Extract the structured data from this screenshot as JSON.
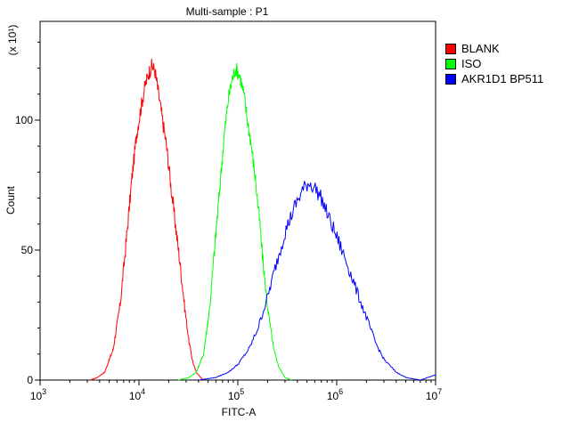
{
  "chart_data": {
    "type": "line",
    "title": "Multi-sample : P1",
    "xlabel": "FITC-A",
    "ylabel": "Count",
    "y_multiplier_label": "(x 10¹)",
    "x_scale": "log",
    "xlim": [
      1000,
      10000000
    ],
    "ylim": [
      0,
      138
    ],
    "x_ticks": [
      {
        "value": 1000,
        "base": "10",
        "exp": "3"
      },
      {
        "value": 10000,
        "base": "10",
        "exp": "4"
      },
      {
        "value": 100000,
        "base": "10",
        "exp": "5"
      },
      {
        "value": 1000000,
        "base": "10",
        "exp": "6"
      },
      {
        "value": 10000000,
        "base": "10",
        "exp": "7"
      }
    ],
    "y_ticks": [
      0,
      50,
      100
    ],
    "legend_position": "top-right",
    "series": [
      {
        "name": "BLANK",
        "color": "#ff0000",
        "x": [
          3200,
          3800,
          4500,
          5500,
          6500,
          7500,
          8500,
          9500,
          10500,
          11500,
          12500,
          13500,
          14500,
          15500,
          17000,
          19000,
          21000,
          23000,
          26000,
          29000,
          32000,
          35000,
          38000,
          42000,
          45000
        ],
        "y": [
          0,
          1,
          3,
          12,
          30,
          55,
          78,
          95,
          105,
          113,
          118,
          121,
          119,
          112,
          102,
          90,
          75,
          62,
          45,
          28,
          15,
          7,
          3,
          1,
          0
        ]
      },
      {
        "name": "ISO",
        "color": "#00ff00",
        "x": [
          25000,
          32000,
          38000,
          45000,
          52000,
          58000,
          65000,
          72000,
          80000,
          88000,
          95000,
          105000,
          115000,
          125000,
          135000,
          150000,
          165000,
          180000,
          200000,
          230000,
          260000,
          300000,
          350000
        ],
        "y": [
          0,
          1,
          3,
          10,
          28,
          50,
          72,
          92,
          108,
          116,
          120,
          117,
          110,
          100,
          92,
          78,
          62,
          45,
          28,
          12,
          5,
          1,
          0
        ]
      },
      {
        "name": "AKR1D1 BP511",
        "color": "#0000ff",
        "x": [
          40000,
          60000,
          80000,
          100000,
          130000,
          160000,
          200000,
          250000,
          300000,
          380000,
          450000,
          520000,
          600000,
          700000,
          800000,
          1000000,
          1300000,
          1600000,
          2000000,
          2500000,
          3000000,
          4000000,
          5000000,
          7000000,
          10000000
        ],
        "y": [
          0,
          1,
          3,
          6,
          12,
          20,
          32,
          46,
          57,
          67,
          73,
          76,
          74,
          70,
          64,
          55,
          44,
          34,
          24,
          14,
          8,
          3,
          1,
          0,
          2
        ]
      }
    ]
  }
}
